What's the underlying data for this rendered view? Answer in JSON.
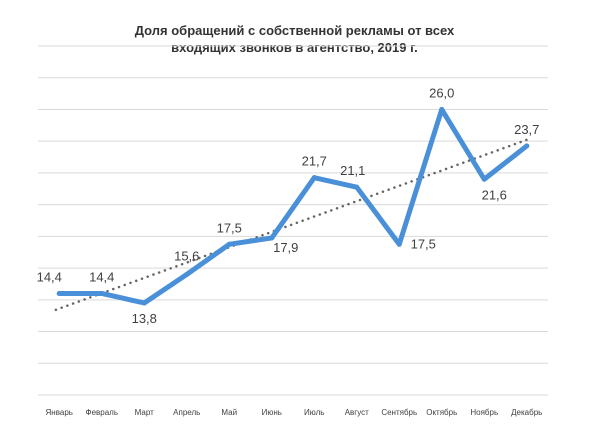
{
  "chart_data": {
    "type": "line",
    "title_line1": "Доля обращений с собственной рекламы от всех",
    "title_line2": "входящих звонков в агентство, 2019 г.",
    "categories": [
      "Январь",
      "Февраль",
      "Март",
      "Апрель",
      "Май",
      "Июнь",
      "Июль",
      "Август",
      "Сентябрь",
      "Октябрь",
      "Ноябрь",
      "Декабрь"
    ],
    "series": [
      {
        "values": [
          14.4,
          14.4,
          13.8,
          15.6,
          17.5,
          17.9,
          21.7,
          21.1,
          17.5,
          26.0,
          21.6,
          23.7
        ],
        "labels": [
          "14,4",
          "14,4",
          "13,8",
          "15,6",
          "17,5",
          "17,9",
          "21,7",
          "21,1",
          "17,5",
          "26,0",
          "21,6",
          "23,7"
        ],
        "color": "#4a90d9"
      }
    ],
    "trendline": {
      "type": "linear",
      "color": "#666666",
      "style": "dotted"
    },
    "ylim": [
      8,
      30
    ],
    "grid": true,
    "legend": "none"
  }
}
